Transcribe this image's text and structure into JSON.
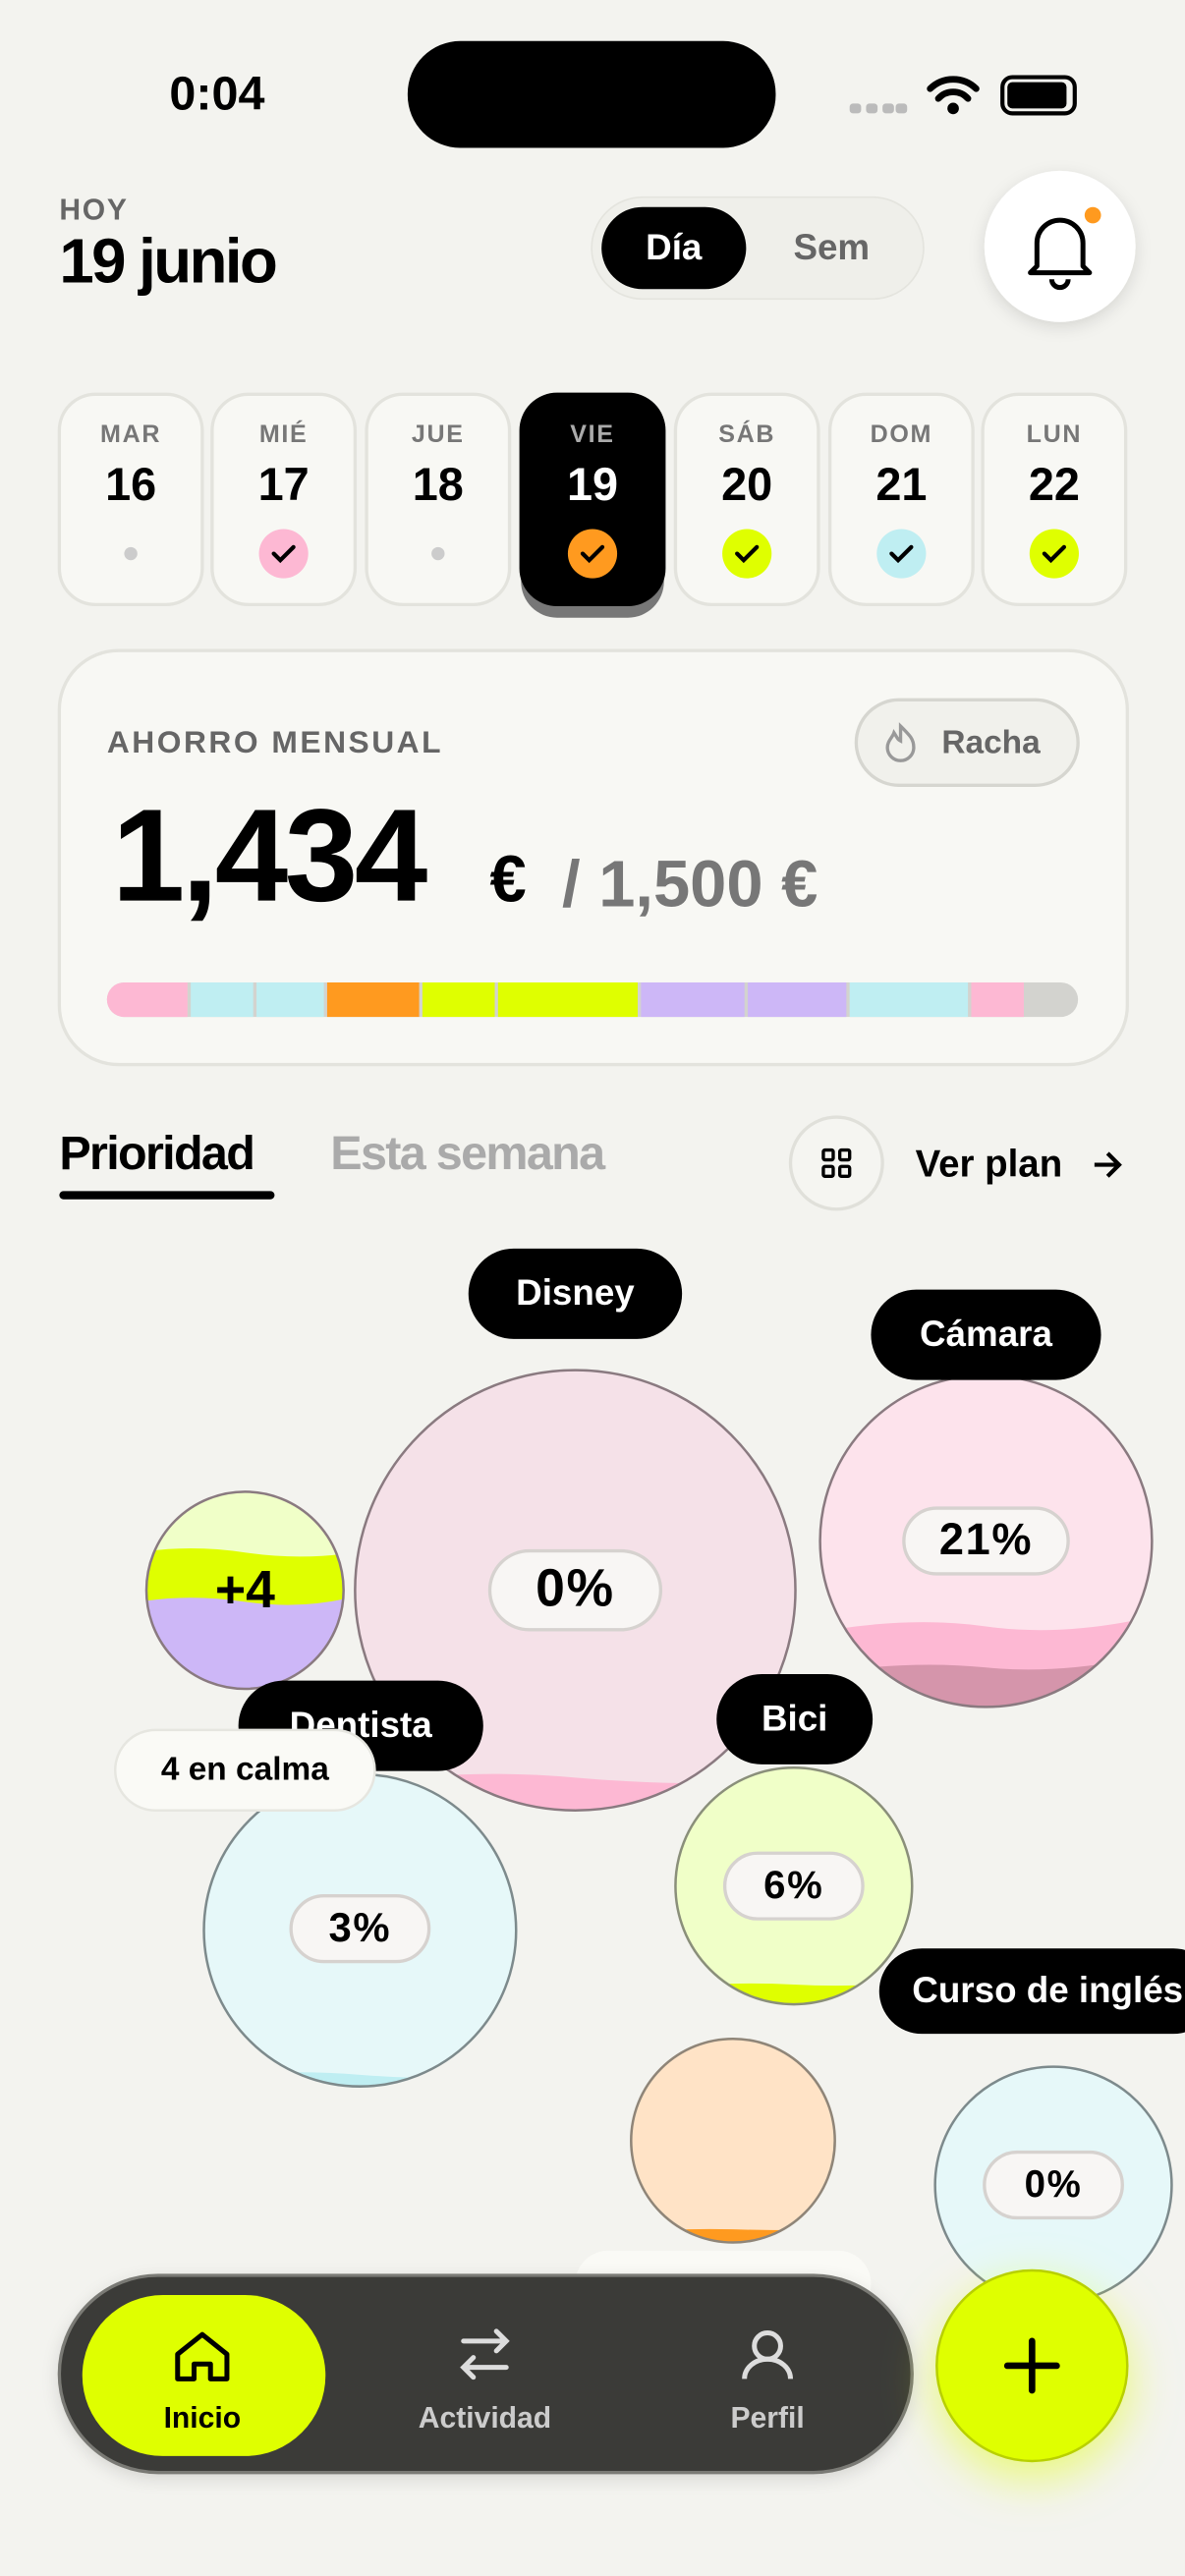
{
  "status_bar": {
    "time": "0:04"
  },
  "header": {
    "label": "HOY",
    "date": "19 junio",
    "toggle": [
      "Día",
      "Sem"
    ]
  },
  "days": [
    {
      "dow": "MAR",
      "num": "16"
    },
    {
      "dow": "MIÉ",
      "num": "17"
    },
    {
      "dow": "JUE",
      "num": "18"
    },
    {
      "dow": "VIE",
      "num": "19"
    },
    {
      "dow": "SÁB",
      "num": "20"
    },
    {
      "dow": "DOM",
      "num": "21"
    },
    {
      "dow": "LUN",
      "num": "22"
    }
  ],
  "savings": {
    "label": "AHORRO MENSUAL",
    "badge": "Racha",
    "amount": "1,434",
    "currency": "€",
    "target": "/ 1,500 €"
  },
  "tabs": [
    "Prioridad",
    "Esta semana"
  ],
  "plan_link": "Ver plan",
  "bubbles": {
    "disney": {
      "name": "Disney",
      "percent": "0%"
    },
    "camara": {
      "name": "Cámara",
      "percent": "21%"
    },
    "more": "+4",
    "dentista": {
      "name": "Dentista",
      "percent": "3%"
    },
    "calm": "4 en calma",
    "bici": {
      "name": "Bici",
      "percent": "6%"
    },
    "curso": {
      "name": "Curso de inglés",
      "percent": "0%"
    }
  },
  "nav": [
    "Inicio",
    "Actividad",
    "Perfil"
  ]
}
